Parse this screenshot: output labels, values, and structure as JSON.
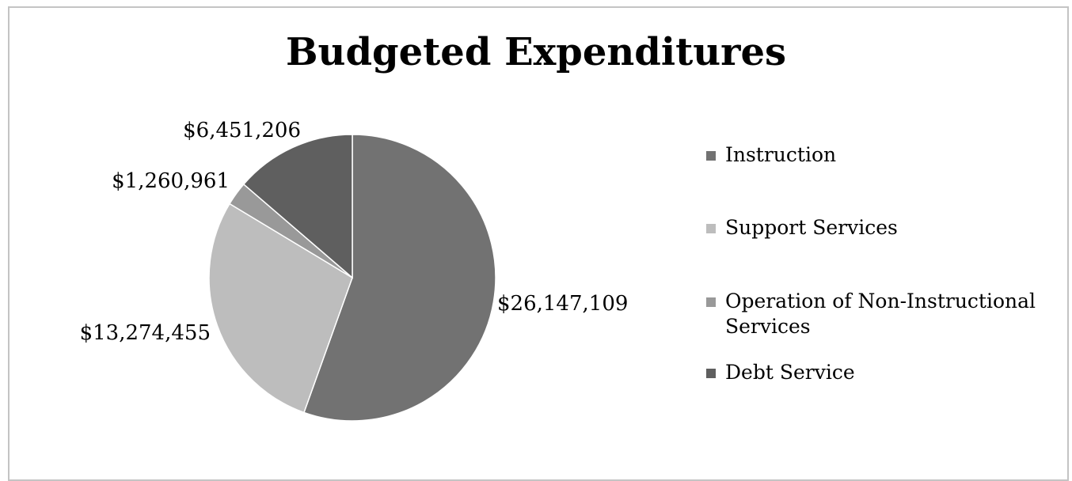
{
  "chart_data": {
    "type": "pie",
    "title": "Budgeted Expenditures",
    "categories": [
      "Instruction",
      "Support Services",
      "Operation of Non-Instructional Services",
      "Debt Service"
    ],
    "values": [
      26147109,
      13274455,
      1260961,
      6451206
    ],
    "data_labels": [
      "$26,147,109",
      "$13,274,455",
      "$1,260,961",
      "$6,451,206"
    ],
    "colors": [
      "#727272",
      "#bdbdbd",
      "#999999",
      "#5f5f5f"
    ],
    "legend_position": "right",
    "start_angle": "12 o'clock",
    "direction": "clockwise"
  }
}
